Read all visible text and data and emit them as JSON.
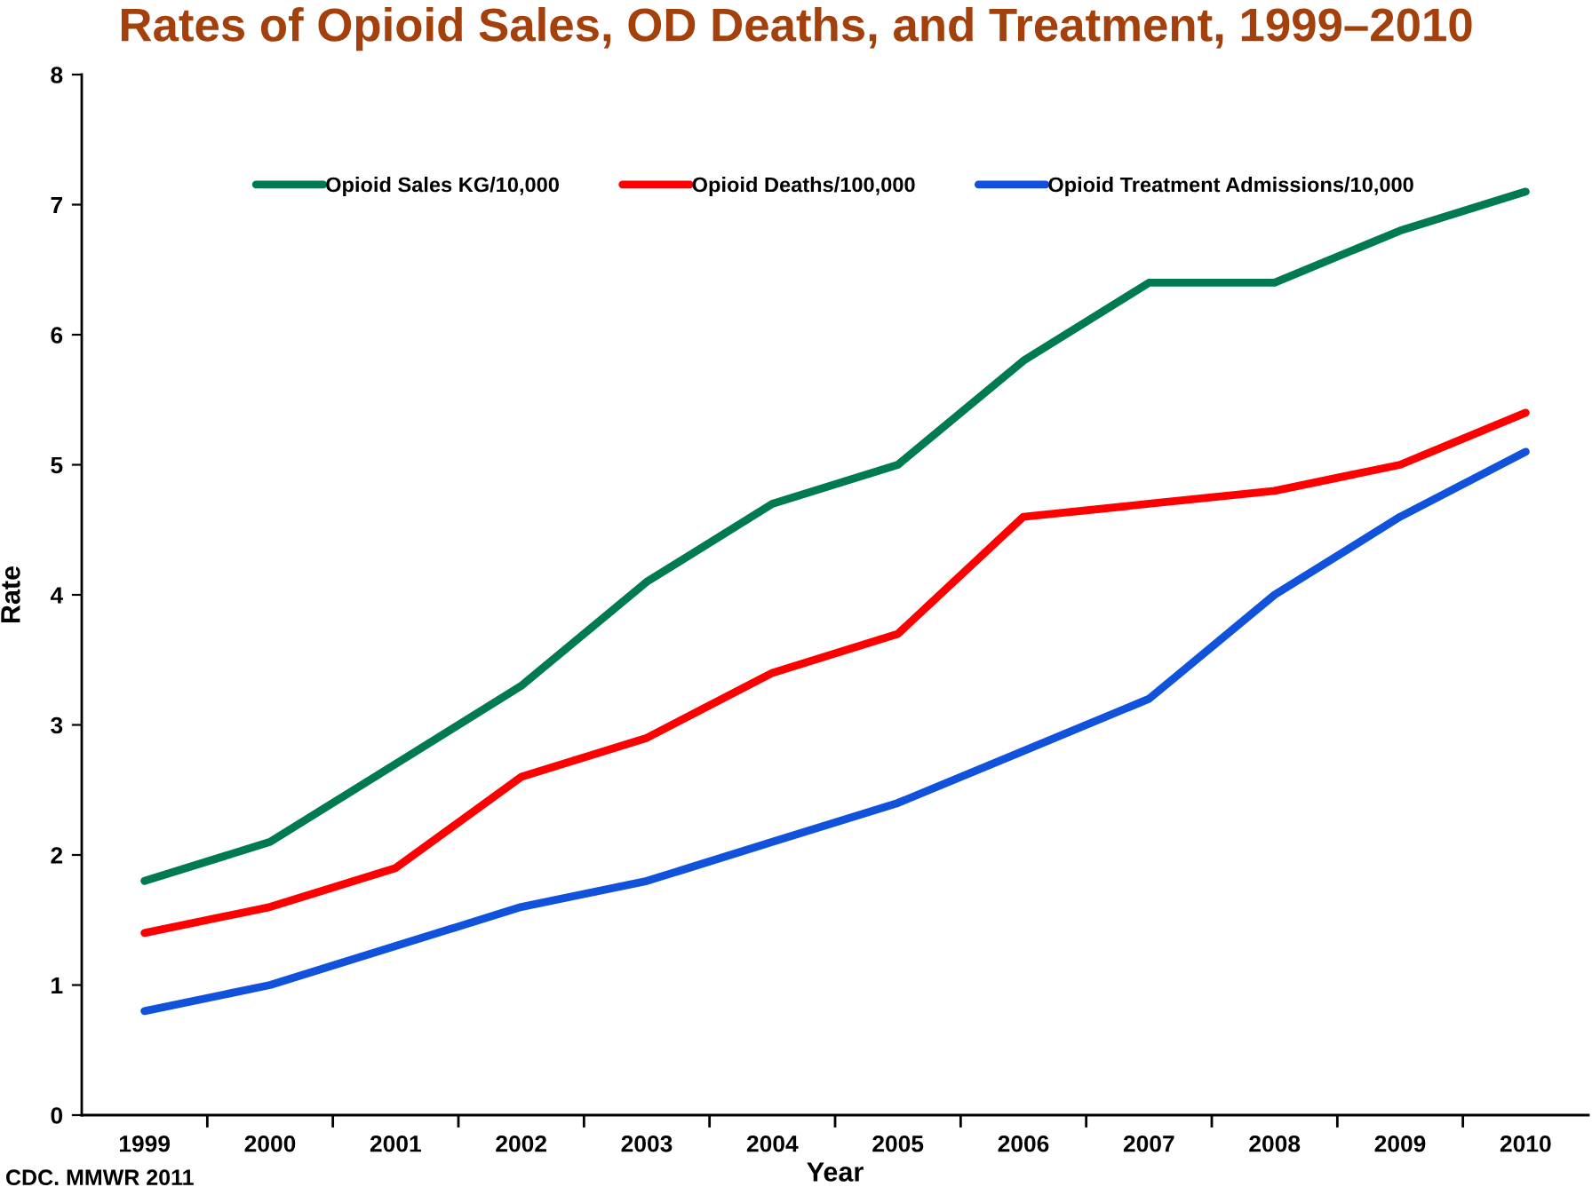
{
  "chart_data": {
    "type": "line",
    "title": "Rates of Opioid Sales, OD Deaths, and Treatment, 1999–2010",
    "xlabel": "Year",
    "ylabel": "Rate",
    "categories": [
      "1999",
      "2000",
      "2001",
      "2002",
      "2003",
      "2004",
      "2005",
      "2006",
      "2007",
      "2008",
      "2009",
      "2010"
    ],
    "series": [
      {
        "name": "Opioid Sales KG/10,000",
        "color": "#007a4f",
        "values": [
          1.8,
          2.1,
          2.7,
          3.3,
          4.1,
          4.7,
          5.0,
          5.8,
          6.4,
          6.4,
          6.8,
          7.1
        ]
      },
      {
        "name": "Opioid Deaths/100,000",
        "color": "#ff0000",
        "values": [
          1.4,
          1.6,
          1.9,
          2.6,
          2.9,
          3.4,
          3.7,
          4.6,
          4.7,
          4.8,
          5.0,
          5.4
        ]
      },
      {
        "name": "Opioid Treatment Admissions/10,000",
        "color": "#1052db",
        "values": [
          0.8,
          1.0,
          1.3,
          1.6,
          1.8,
          2.1,
          2.4,
          2.8,
          3.2,
          4.0,
          4.6,
          5.1
        ]
      }
    ],
    "ylim": [
      0,
      8
    ],
    "yticks": [
      0,
      1,
      2,
      3,
      4,
      5,
      6,
      7,
      8
    ],
    "annotations": [
      "CDC. MMWR 2011"
    ],
    "legend": "top",
    "grid": false,
    "marker": "none",
    "line_style": "solid"
  }
}
